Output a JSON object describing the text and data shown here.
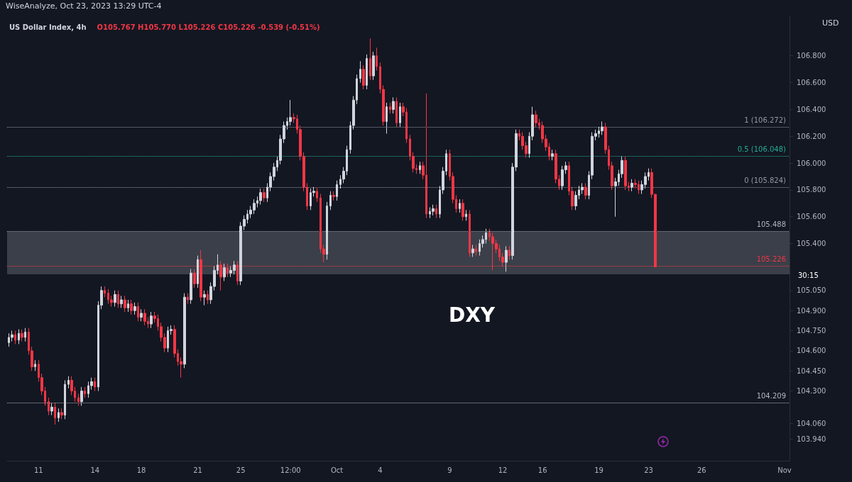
{
  "chart_data": {
    "type": "candlestick",
    "title": "US Dollar Index, 4h",
    "subtitle": "O105.767 H105.770 L105.226 C105.226 -0.539 (-0.51%)",
    "ylabel": "USD",
    "annotations": [
      "WiseAnalyze, Oct 23, 2023 13:29 UTC-4",
      "DXY",
      "30:15"
    ],
    "categories": [
      null,
      null,
      null,
      null,
      null,
      null,
      null,
      null,
      null,
      "11",
      null,
      null,
      null,
      null,
      null,
      null,
      null,
      null,
      null,
      null,
      null,
      null,
      null,
      null,
      null,
      null,
      "14",
      null,
      null,
      null,
      null,
      null,
      null,
      null,
      null,
      null,
      null,
      null,
      null,
      null,
      "18",
      null,
      null,
      null,
      null,
      null,
      null,
      null,
      null,
      null,
      null,
      null,
      null,
      null,
      null,
      null,
      null,
      "21",
      null,
      null,
      null,
      null,
      null,
      null,
      null,
      null,
      null,
      null,
      null,
      null,
      "25",
      null,
      null,
      null,
      null,
      null,
      null,
      null,
      null,
      null,
      null,
      null,
      null,
      null,
      null,
      "12:00",
      null,
      null,
      null,
      null,
      null,
      null,
      null,
      null,
      null,
      null,
      null,
      null,
      null,
      "Oct",
      null,
      null,
      null,
      null,
      null,
      null,
      null,
      null,
      null,
      null,
      null,
      null,
      "4",
      null,
      null,
      null,
      null,
      null,
      null,
      null,
      null,
      null,
      null,
      null,
      null,
      null,
      null,
      null,
      null,
      null,
      null,
      null,
      null,
      "9",
      null,
      null,
      null,
      null,
      null,
      null,
      null,
      null,
      null,
      null,
      null,
      null,
      null,
      null,
      null,
      "12",
      null,
      null,
      null,
      null,
      null,
      null,
      null,
      null,
      null,
      null,
      null,
      "16",
      null,
      null,
      null,
      null,
      null,
      null,
      null,
      null,
      null,
      null,
      null,
      null,
      null,
      null,
      null,
      null,
      "19",
      null,
      null,
      null,
      null,
      null,
      null,
      null,
      null,
      null,
      null,
      null,
      null,
      null,
      null,
      "23",
      null,
      null,
      null,
      null,
      null,
      null,
      null,
      null,
      null,
      null,
      null,
      null,
      null,
      null,
      null,
      "26",
      null,
      null,
      null,
      null,
      null,
      null,
      null,
      null,
      null,
      null,
      null,
      null,
      null,
      null,
      null,
      null,
      null,
      null,
      null,
      null,
      null,
      null,
      null,
      null,
      "Nov",
      null
    ],
    "ohlc": [
      [
        104.66,
        104.73,
        104.63,
        104.7
      ],
      [
        104.7,
        104.75,
        104.67,
        104.72
      ],
      [
        104.72,
        104.75,
        104.65,
        104.68
      ],
      [
        104.68,
        104.76,
        104.65,
        104.73
      ],
      [
        104.73,
        104.76,
        104.67,
        104.7
      ],
      [
        104.7,
        104.77,
        104.67,
        104.74
      ],
      [
        104.74,
        104.77,
        104.57,
        104.6
      ],
      [
        104.6,
        104.63,
        104.45,
        104.48
      ],
      [
        104.48,
        104.53,
        104.45,
        104.5
      ],
      [
        104.5,
        104.53,
        104.37,
        104.4
      ],
      [
        104.4,
        104.43,
        104.27,
        104.3
      ],
      [
        104.3,
        104.33,
        104.19,
        104.22
      ],
      [
        104.22,
        104.25,
        104.12,
        104.15
      ],
      [
        104.15,
        104.21,
        104.12,
        104.18
      ],
      [
        104.18,
        104.21,
        104.05,
        104.1
      ],
      [
        104.1,
        104.17,
        104.07,
        104.14
      ],
      [
        104.14,
        104.17,
        104.09,
        104.12
      ],
      [
        104.12,
        104.38,
        104.09,
        104.35
      ],
      [
        104.35,
        104.41,
        104.32,
        104.38
      ],
      [
        104.38,
        104.41,
        104.27,
        104.3
      ],
      [
        104.3,
        104.33,
        104.22,
        104.25
      ],
      [
        104.25,
        104.28,
        104.19,
        104.22
      ],
      [
        104.22,
        104.33,
        104.19,
        104.3
      ],
      [
        104.3,
        104.33,
        104.25,
        104.28
      ],
      [
        104.28,
        104.37,
        104.25,
        104.34
      ],
      [
        104.34,
        104.4,
        104.31,
        104.37
      ],
      [
        104.37,
        104.4,
        104.3,
        104.33
      ],
      [
        104.33,
        104.97,
        104.3,
        104.94
      ],
      [
        104.94,
        105.08,
        104.91,
        105.05
      ],
      [
        105.05,
        105.08,
        105.0,
        105.03
      ],
      [
        105.03,
        105.06,
        104.95,
        104.98
      ],
      [
        104.98,
        105.01,
        104.93,
        104.96
      ],
      [
        104.96,
        105.05,
        104.93,
        105.02
      ],
      [
        105.02,
        105.05,
        104.92,
        104.95
      ],
      [
        104.95,
        105.01,
        104.92,
        104.98
      ],
      [
        104.98,
        105.01,
        104.89,
        104.92
      ],
      [
        104.92,
        104.98,
        104.89,
        104.95
      ],
      [
        104.95,
        104.98,
        104.87,
        104.9
      ],
      [
        104.9,
        104.96,
        104.87,
        104.93
      ],
      [
        104.93,
        104.96,
        104.82,
        104.85
      ],
      [
        104.85,
        104.91,
        104.82,
        104.88
      ],
      [
        104.88,
        104.91,
        104.79,
        104.82
      ],
      [
        104.82,
        104.85,
        104.77,
        104.8
      ],
      [
        104.8,
        104.89,
        104.77,
        104.86
      ],
      [
        104.86,
        104.89,
        104.81,
        104.84
      ],
      [
        104.84,
        104.87,
        104.75,
        104.78
      ],
      [
        104.78,
        104.81,
        104.67,
        104.7
      ],
      [
        104.7,
        104.73,
        104.59,
        104.62
      ],
      [
        104.62,
        104.78,
        104.59,
        104.75
      ],
      [
        104.75,
        104.79,
        104.72,
        104.76
      ],
      [
        104.76,
        104.79,
        104.55,
        104.58
      ],
      [
        104.58,
        104.61,
        104.49,
        104.52
      ],
      [
        104.52,
        104.55,
        104.4,
        104.5
      ],
      [
        104.5,
        105.03,
        104.47,
        105.0
      ],
      [
        105.0,
        105.03,
        104.95,
        104.98
      ],
      [
        104.98,
        105.21,
        104.95,
        105.18
      ],
      [
        105.18,
        105.21,
        105.07,
        105.1
      ],
      [
        105.1,
        105.31,
        105.07,
        105.28
      ],
      [
        105.28,
        105.35,
        104.97,
        105.0
      ],
      [
        105.0,
        105.05,
        104.94,
        105.02
      ],
      [
        105.02,
        105.05,
        104.95,
        104.98
      ],
      [
        104.98,
        105.11,
        104.95,
        105.08
      ],
      [
        105.08,
        105.23,
        105.05,
        105.2
      ],
      [
        105.2,
        105.32,
        105.17,
        105.24
      ],
      [
        105.24,
        105.27,
        105.05,
        105.15
      ],
      [
        105.15,
        105.25,
        105.12,
        105.22
      ],
      [
        105.22,
        105.25,
        105.15,
        105.18
      ],
      [
        105.18,
        105.23,
        105.15,
        105.2
      ],
      [
        105.2,
        105.27,
        105.17,
        105.24
      ],
      [
        105.24,
        105.27,
        105.09,
        105.12
      ],
      [
        105.12,
        105.56,
        105.09,
        105.53
      ],
      [
        105.53,
        105.61,
        105.5,
        105.58
      ],
      [
        105.58,
        105.65,
        105.55,
        105.62
      ],
      [
        105.62,
        105.68,
        105.59,
        105.65
      ],
      [
        105.65,
        105.73,
        105.62,
        105.7
      ],
      [
        105.7,
        105.75,
        105.67,
        105.72
      ],
      [
        105.72,
        105.81,
        105.69,
        105.78
      ],
      [
        105.78,
        105.81,
        105.71,
        105.74
      ],
      [
        105.74,
        105.85,
        105.71,
        105.82
      ],
      [
        105.82,
        105.93,
        105.79,
        105.9
      ],
      [
        105.9,
        106.0,
        105.87,
        105.97
      ],
      [
        105.97,
        106.05,
        105.94,
        106.02
      ],
      [
        106.02,
        106.21,
        105.99,
        106.18
      ],
      [
        106.18,
        106.31,
        106.15,
        106.28
      ],
      [
        106.28,
        106.34,
        106.25,
        106.31
      ],
      [
        106.31,
        106.47,
        106.28,
        106.34
      ],
      [
        106.34,
        106.37,
        106.3,
        106.33
      ],
      [
        106.33,
        106.36,
        106.22,
        106.25
      ],
      [
        106.25,
        106.28,
        106.02,
        106.05
      ],
      [
        106.05,
        106.08,
        105.79,
        105.82
      ],
      [
        105.82,
        105.85,
        105.65,
        105.68
      ],
      [
        105.68,
        105.81,
        105.65,
        105.78
      ],
      [
        105.78,
        105.82,
        105.75,
        105.79
      ],
      [
        105.79,
        105.82,
        105.71,
        105.74
      ],
      [
        105.74,
        105.77,
        105.33,
        105.36
      ],
      [
        105.36,
        105.39,
        105.26,
        105.32
      ],
      [
        105.32,
        105.71,
        105.28,
        105.68
      ],
      [
        105.68,
        105.79,
        105.65,
        105.76
      ],
      [
        105.76,
        105.79,
        105.72,
        105.75
      ],
      [
        105.75,
        105.87,
        105.72,
        105.84
      ],
      [
        105.84,
        105.91,
        105.81,
        105.88
      ],
      [
        105.88,
        105.97,
        105.85,
        105.94
      ],
      [
        105.94,
        106.13,
        105.91,
        106.1
      ],
      [
        106.1,
        106.31,
        106.07,
        106.28
      ],
      [
        106.28,
        106.5,
        106.25,
        106.47
      ],
      [
        106.47,
        106.66,
        106.44,
        106.63
      ],
      [
        106.63,
        106.76,
        106.6,
        106.7
      ],
      [
        106.7,
        106.73,
        106.55,
        106.58
      ],
      [
        106.58,
        106.81,
        106.55,
        106.78
      ],
      [
        106.78,
        106.93,
        106.62,
        106.65
      ],
      [
        106.65,
        106.83,
        106.62,
        106.8
      ],
      [
        106.8,
        106.86,
        106.69,
        106.72
      ],
      [
        106.72,
        106.75,
        106.52,
        106.55
      ],
      [
        106.55,
        106.58,
        106.28,
        106.31
      ],
      [
        106.31,
        106.45,
        106.22,
        106.42
      ],
      [
        106.42,
        106.45,
        106.37,
        106.4
      ],
      [
        106.4,
        106.49,
        106.37,
        106.46
      ],
      [
        106.46,
        106.49,
        106.27,
        106.3
      ],
      [
        106.3,
        106.45,
        106.27,
        106.42
      ],
      [
        106.42,
        106.45,
        106.35,
        106.38
      ],
      [
        106.38,
        106.41,
        106.15,
        106.18
      ],
      [
        106.18,
        106.21,
        106.02,
        106.05
      ],
      [
        106.05,
        106.08,
        105.93,
        105.96
      ],
      [
        105.96,
        105.99,
        105.92,
        105.95
      ],
      [
        105.95,
        106.01,
        105.92,
        105.98
      ],
      [
        105.98,
        106.01,
        105.88,
        105.91
      ],
      [
        105.91,
        106.52,
        105.59,
        105.62
      ],
      [
        105.62,
        105.67,
        105.59,
        105.64
      ],
      [
        105.64,
        105.69,
        105.61,
        105.66
      ],
      [
        105.66,
        105.69,
        105.59,
        105.62
      ],
      [
        105.62,
        105.83,
        105.59,
        105.8
      ],
      [
        105.8,
        105.97,
        105.77,
        105.94
      ],
      [
        105.94,
        106.1,
        105.91,
        106.07
      ],
      [
        106.07,
        106.1,
        105.87,
        105.9
      ],
      [
        105.9,
        105.93,
        105.7,
        105.73
      ],
      [
        105.73,
        105.76,
        105.63,
        105.66
      ],
      [
        105.66,
        105.73,
        105.63,
        105.7
      ],
      [
        105.7,
        105.73,
        105.57,
        105.6
      ],
      [
        105.6,
        105.65,
        105.57,
        105.62
      ],
      [
        105.62,
        105.65,
        105.3,
        105.33
      ],
      [
        105.33,
        105.39,
        105.3,
        105.36
      ],
      [
        105.36,
        105.39,
        105.31,
        105.34
      ],
      [
        105.34,
        105.43,
        105.31,
        105.4
      ],
      [
        105.4,
        105.46,
        105.37,
        105.43
      ],
      [
        105.43,
        105.51,
        105.4,
        105.48
      ],
      [
        105.48,
        105.51,
        105.42,
        105.45
      ],
      [
        105.45,
        105.48,
        105.2,
        105.4
      ],
      [
        105.4,
        105.43,
        105.33,
        105.36
      ],
      [
        105.36,
        105.39,
        105.27,
        105.3
      ],
      [
        105.3,
        105.33,
        105.23,
        105.26
      ],
      [
        105.26,
        105.38,
        105.19,
        105.35
      ],
      [
        105.35,
        105.38,
        105.28,
        105.31
      ],
      [
        105.31,
        106.0,
        105.28,
        105.97
      ],
      [
        105.97,
        106.25,
        105.94,
        106.22
      ],
      [
        106.22,
        106.25,
        106.17,
        106.2
      ],
      [
        106.2,
        106.23,
        106.1,
        106.13
      ],
      [
        106.13,
        106.16,
        106.04,
        106.07
      ],
      [
        106.07,
        106.23,
        106.04,
        106.2
      ],
      [
        106.2,
        106.42,
        106.17,
        106.36
      ],
      [
        106.36,
        106.39,
        106.27,
        106.3
      ],
      [
        106.3,
        106.33,
        106.25,
        106.28
      ],
      [
        106.28,
        106.31,
        106.15,
        106.18
      ],
      [
        106.18,
        106.21,
        106.09,
        106.12
      ],
      [
        106.12,
        106.15,
        106.02,
        106.05
      ],
      [
        106.05,
        106.1,
        106.02,
        106.07
      ],
      [
        106.07,
        106.1,
        105.85,
        105.88
      ],
      [
        105.88,
        105.91,
        105.8,
        105.83
      ],
      [
        105.83,
        105.98,
        105.8,
        105.95
      ],
      [
        105.95,
        106.01,
        105.92,
        105.98
      ],
      [
        105.98,
        106.01,
        105.76,
        105.79
      ],
      [
        105.79,
        105.82,
        105.65,
        105.68
      ],
      [
        105.68,
        105.79,
        105.65,
        105.76
      ],
      [
        105.76,
        105.83,
        105.73,
        105.8
      ],
      [
        105.8,
        105.85,
        105.77,
        105.82
      ],
      [
        105.82,
        105.85,
        105.73,
        105.76
      ],
      [
        105.76,
        105.94,
        105.73,
        105.91
      ],
      [
        105.91,
        106.23,
        105.88,
        106.2
      ],
      [
        106.2,
        106.25,
        106.17,
        106.22
      ],
      [
        106.22,
        106.27,
        106.19,
        106.24
      ],
      [
        106.24,
        106.31,
        106.21,
        106.27
      ],
      [
        106.27,
        106.3,
        106.07,
        106.1
      ],
      [
        106.1,
        106.13,
        105.95,
        105.98
      ],
      [
        105.98,
        106.01,
        105.8,
        105.83
      ],
      [
        105.83,
        105.89,
        105.6,
        105.86
      ],
      [
        105.86,
        105.95,
        105.83,
        105.92
      ],
      [
        105.92,
        106.05,
        105.89,
        106.02
      ],
      [
        106.02,
        106.05,
        105.8,
        105.83
      ],
      [
        105.83,
        105.86,
        105.79,
        105.82
      ],
      [
        105.82,
        105.88,
        105.79,
        105.85
      ],
      [
        105.85,
        105.88,
        105.81,
        105.84
      ],
      [
        105.84,
        105.87,
        105.77,
        105.8
      ],
      [
        105.8,
        105.87,
        105.77,
        105.84
      ],
      [
        105.84,
        105.93,
        105.81,
        105.9
      ],
      [
        105.9,
        105.96,
        105.87,
        105.93
      ],
      [
        105.93,
        105.96,
        105.74,
        105.767
      ],
      [
        105.767,
        105.77,
        105.226,
        105.226
      ],
      null,
      null,
      null,
      null,
      null,
      null,
      null,
      null,
      null,
      null,
      null,
      null,
      null,
      null,
      null,
      null,
      null,
      null,
      null,
      null,
      null,
      null,
      null,
      null,
      null,
      null,
      null,
      null,
      null,
      null,
      null,
      null,
      null,
      null,
      null,
      null,
      null,
      null,
      null,
      null
    ],
    "colors": [
      "#d1d4dc",
      "#d1d4dc",
      "#f23645",
      "#d1d4dc",
      "#f23645",
      "#d1d4dc",
      "#f23645",
      "#f23645",
      "#d1d4dc",
      "#f23645",
      "#f23645",
      "#f23645",
      "#f23645",
      "#d1d4dc",
      "#f23645",
      "#d1d4dc",
      "#f23645",
      "#d1d4dc",
      "#d1d4dc",
      "#f23645",
      "#f23645",
      "#f23645",
      "#d1d4dc",
      "#f23645",
      "#d1d4dc",
      "#d1d4dc",
      "#f23645",
      "#d1d4dc",
      "#d1d4dc",
      "#f23645",
      "#f23645",
      "#f23645",
      "#d1d4dc",
      "#f23645",
      "#d1d4dc",
      "#f23645",
      "#d1d4dc",
      "#f23645",
      "#d1d4dc",
      "#f23645",
      "#d1d4dc",
      "#f23645",
      "#f23645",
      "#d1d4dc",
      "#f23645",
      "#f23645",
      "#f23645",
      "#f23645",
      "#d1d4dc",
      "#d1d4dc",
      "#f23645",
      "#f23645",
      "#f23645",
      "#d1d4dc",
      "#f23645",
      "#d1d4dc",
      "#f23645",
      "#d1d4dc",
      "#f23645",
      "#d1d4dc",
      "#f23645",
      "#d1d4dc",
      "#d1d4dc",
      "#d1d4dc",
      "#f23645",
      "#d1d4dc",
      "#f23645",
      "#d1d4dc",
      "#d1d4dc",
      "#f23645",
      "#d1d4dc",
      "#d1d4dc",
      "#d1d4dc",
      "#d1d4dc",
      "#d1d4dc",
      "#d1d4dc",
      "#d1d4dc",
      "#f23645",
      "#d1d4dc",
      "#d1d4dc",
      "#d1d4dc",
      "#d1d4dc",
      "#d1d4dc",
      "#d1d4dc",
      "#d1d4dc",
      "#d1d4dc",
      "#f23645",
      "#f23645",
      "#f23645",
      "#f23645",
      "#f23645",
      "#d1d4dc",
      "#d1d4dc",
      "#f23645",
      "#f23645",
      "#f23645",
      "#d1d4dc",
      "#d1d4dc",
      "#f23645",
      "#d1d4dc",
      "#d1d4dc",
      "#d1d4dc",
      "#d1d4dc",
      "#d1d4dc",
      "#d1d4dc",
      "#d1d4dc",
      "#d1d4dc",
      "#f23645",
      "#d1d4dc",
      "#f23645",
      "#d1d4dc",
      "#f23645",
      "#f23645",
      "#f23645",
      "#d1d4dc",
      "#f23645",
      "#d1d4dc",
      "#f23645",
      "#d1d4dc",
      "#f23645",
      "#f23645",
      "#f23645",
      "#f23645",
      "#f23645",
      "#d1d4dc",
      "#f23645",
      "#f23645",
      "#d1d4dc",
      "#d1d4dc",
      "#f23645",
      "#d1d4dc",
      "#d1d4dc",
      "#d1d4dc",
      "#f23645",
      "#f23645",
      "#f23645",
      "#d1d4dc",
      "#f23645",
      "#d1d4dc",
      "#f23645",
      "#d1d4dc",
      "#f23645",
      "#d1d4dc",
      "#d1d4dc",
      "#d1d4dc",
      "#f23645",
      "#f23645",
      "#f23645",
      "#f23645",
      "#f23645",
      "#d1d4dc",
      "#f23645",
      "#d1d4dc",
      "#d1d4dc",
      "#f23645",
      "#f23645",
      "#f23645",
      "#d1d4dc",
      "#d1d4dc",
      "#f23645",
      "#f23645",
      "#f23645",
      "#f23645",
      "#f23645",
      "#d1d4dc",
      "#f23645",
      "#f23645",
      "#d1d4dc",
      "#d1d4dc",
      "#f23645",
      "#f23645",
      "#d1d4dc",
      "#d1d4dc",
      "#d1d4dc",
      "#f23645",
      "#d1d4dc",
      "#d1d4dc",
      "#d1d4dc",
      "#d1d4dc",
      "#d1d4dc",
      "#f23645",
      "#f23645",
      "#f23645",
      "#d1d4dc",
      "#d1d4dc",
      "#d1d4dc",
      "#f23645",
      "#f23645",
      "#d1d4dc",
      "#f23645",
      "#f23645",
      "#d1d4dc",
      "#d1d4dc",
      "#d1d4dc",
      "#f23645",
      "#f23645",
      null,
      null,
      null,
      null,
      null,
      null,
      null,
      null,
      null,
      null,
      null,
      null,
      null,
      null,
      null,
      null,
      null,
      null,
      null,
      null,
      null,
      null,
      null,
      null,
      null,
      null,
      null,
      null,
      null,
      null,
      null,
      null,
      null,
      null,
      null,
      null,
      null,
      null,
      null,
      null
    ],
    "ylim": [
      103.78,
      107.1
    ],
    "yticks": [
      {
        "value": 103.94,
        "label": "103.940"
      },
      {
        "value": 104.06,
        "label": "104.060"
      },
      {
        "value": 104.3,
        "label": "104.300"
      },
      {
        "value": 104.45,
        "label": "104.450"
      },
      {
        "value": 104.6,
        "label": "104.600"
      },
      {
        "value": 104.75,
        "label": "104.750"
      },
      {
        "value": 104.9,
        "label": "104.900"
      },
      {
        "value": 105.05,
        "label": "105.050"
      },
      {
        "value": 105.4,
        "label": "105.400"
      },
      {
        "value": 105.6,
        "label": "105.600"
      },
      {
        "value": 105.8,
        "label": "105.800"
      },
      {
        "value": 106,
        "label": "106.000"
      },
      {
        "value": 106.2,
        "label": "106.200"
      },
      {
        "value": 106.4,
        "label": "106.400"
      },
      {
        "value": 106.6,
        "label": "106.600"
      },
      {
        "value": 106.8,
        "label": "106.800"
      }
    ],
    "ref_lines": [
      {
        "axis": "y",
        "value": 105.488,
        "label": "105.488",
        "color": "#b2b5be",
        "line_style": "dotted"
      },
      {
        "axis": "y",
        "value": 104.209,
        "label": "104.209",
        "color": "#b2b5be",
        "line_style": "dotted"
      },
      {
        "axis": "y",
        "value": 105.226,
        "label": "105.226",
        "color": "#f23645",
        "line_style": "dotted"
      },
      {
        "axis": "y",
        "value": 106.272,
        "label": "1 (106.272)",
        "color": "#9598a1",
        "line_style": "dotted"
      },
      {
        "axis": "y",
        "value": 106.048,
        "label": "0.5 (106.048)",
        "color": "#22ab94",
        "line_style": "dotted"
      },
      {
        "axis": "y",
        "value": 105.824,
        "label": "0 (105.824)",
        "color": "#9598a1",
        "line_style": "dotted"
      }
    ],
    "bands": [
      {
        "axis": "y",
        "from": 105.17,
        "to": 105.488,
        "color": "#4a4d57"
      }
    ],
    "grid": false
  }
}
